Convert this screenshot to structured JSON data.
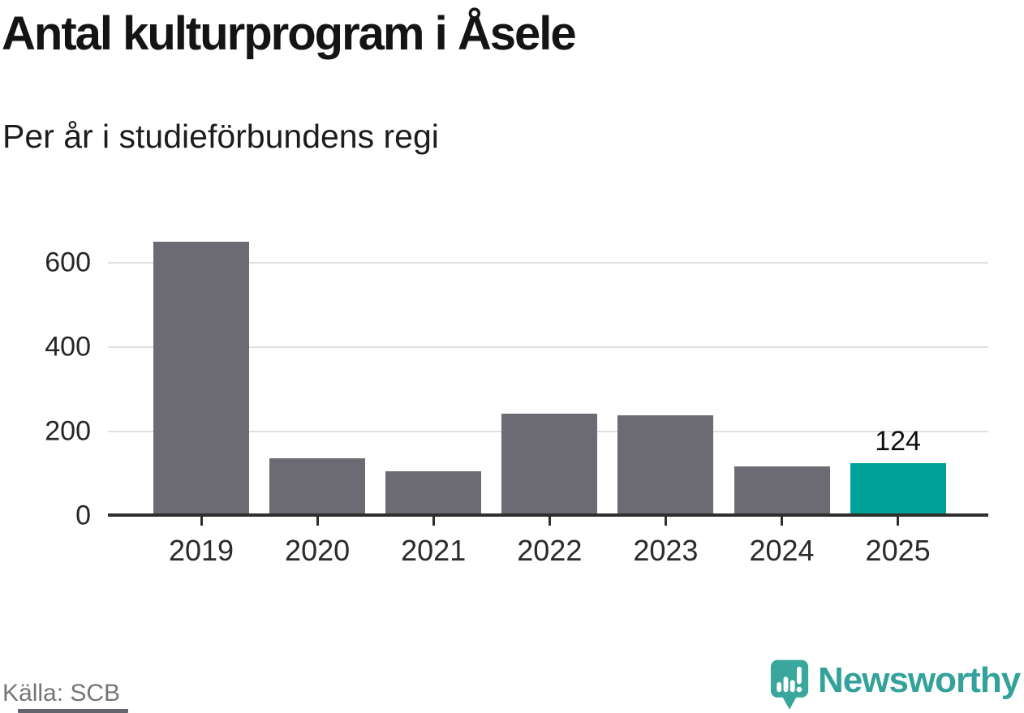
{
  "header": {
    "title": "Antal kulturprogram i Åsele",
    "subtitle": "Per år i studieförbundens regi"
  },
  "chart_data": {
    "type": "bar",
    "title": "Antal kulturprogram i Åsele",
    "subtitle": "Per år i studieförbundens regi",
    "categories": [
      "2019",
      "2020",
      "2021",
      "2022",
      "2023",
      "2024",
      "2025"
    ],
    "values": [
      650,
      137,
      105,
      242,
      239,
      118,
      124
    ],
    "highlight_index": 6,
    "highlight_label": "124",
    "xlabel": "",
    "ylabel": "",
    "yticks": [
      0,
      200,
      400,
      600
    ],
    "ylim": [
      0,
      680
    ],
    "grid": true,
    "legend": "none",
    "bar_color": "#6c6a73",
    "highlight_color": "#00a196"
  },
  "footer": {
    "source": "Källa: SCB",
    "brand": "Newsworthy"
  },
  "colors": {
    "bar_gray": "#6c6a73",
    "accent_teal": "#00a196",
    "logo_teal": "#3aa79c",
    "grid_line": "#e0e0e0",
    "axis_line": "#2e2e2e",
    "source_text": "#767676"
  },
  "icons": {
    "brand_icon": "newsworthy-speech-bubble-bar-chart-icon"
  }
}
